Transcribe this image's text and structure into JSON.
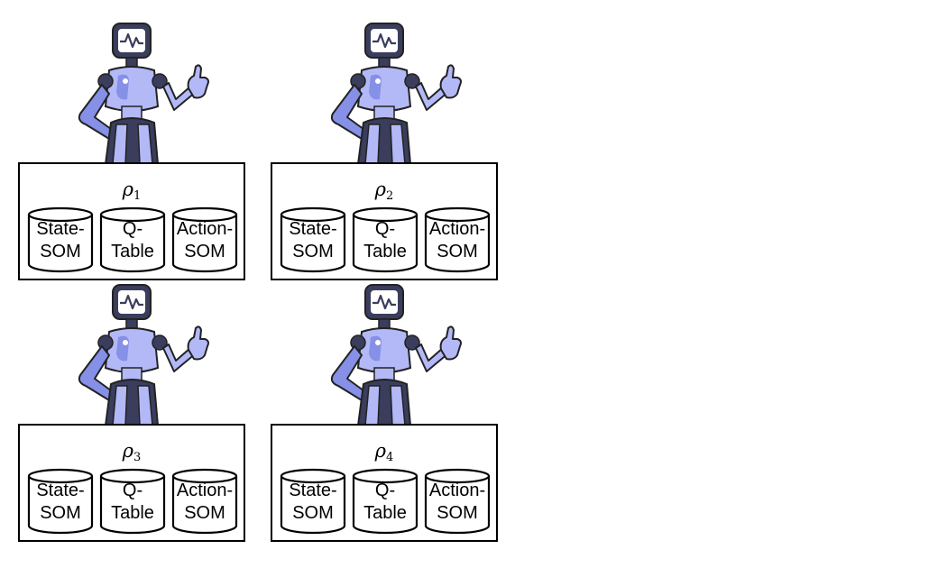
{
  "diagram": {
    "agents": [
      {
        "symbol": "ρ",
        "index": "1",
        "components": [
          {
            "line1": "State-",
            "line2": "SOM"
          },
          {
            "line1": "Q-",
            "line2": "Table"
          },
          {
            "line1": "Action-",
            "line2": "SOM"
          }
        ]
      },
      {
        "symbol": "ρ",
        "index": "2",
        "components": [
          {
            "line1": "State-",
            "line2": "SOM"
          },
          {
            "line1": "Q-",
            "line2": "Table"
          },
          {
            "line1": "Action-",
            "line2": "SOM"
          }
        ]
      },
      {
        "symbol": "ρ",
        "index": "3",
        "components": [
          {
            "line1": "State-",
            "line2": "SOM"
          },
          {
            "line1": "Q-",
            "line2": "Table"
          },
          {
            "line1": "Action-",
            "line2": "SOM"
          }
        ]
      },
      {
        "symbol": "ρ",
        "index": "4",
        "components": [
          {
            "line1": "State-",
            "line2": "SOM"
          },
          {
            "line1": "Q-",
            "line2": "Table"
          },
          {
            "line1": "Action-",
            "line2": "SOM"
          }
        ]
      }
    ],
    "colors": {
      "robot_light": "#b3b9f7",
      "robot_mid": "#8590e6",
      "robot_dark": "#3a3d5c",
      "outline": "#000000"
    }
  }
}
